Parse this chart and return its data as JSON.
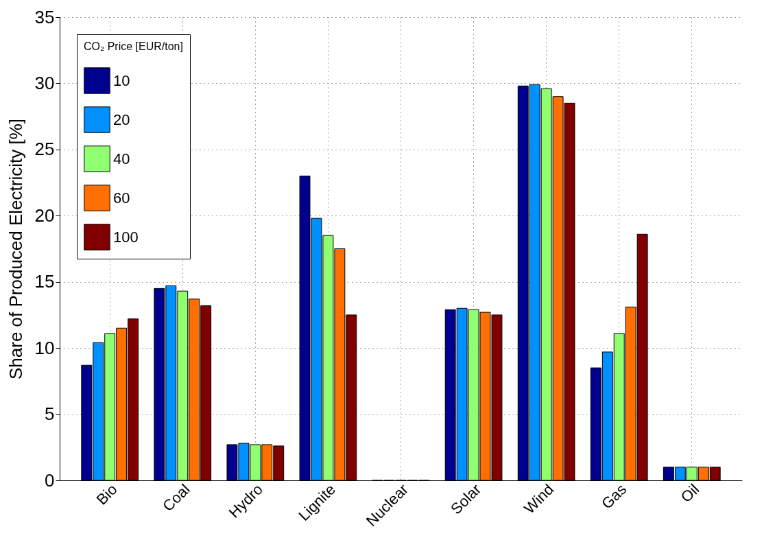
{
  "chart_data": {
    "type": "bar",
    "ylabel": "Share of Produced Electricity [%]",
    "legend_title": "CO₂ Price [EUR/ton]",
    "categories": [
      "Bio",
      "Coal",
      "Hydro",
      "Lignite",
      "Nuclear",
      "Solar",
      "Wind",
      "Gas",
      "Oil"
    ],
    "series": [
      {
        "name": "10",
        "color": "#00008f",
        "values": [
          8.7,
          14.5,
          2.7,
          23.0,
          0,
          12.9,
          29.8,
          8.5,
          1.0
        ]
      },
      {
        "name": "20",
        "color": "#0090ff",
        "values": [
          10.4,
          14.7,
          2.8,
          19.8,
          0,
          13.0,
          29.9,
          9.7,
          1.0
        ]
      },
      {
        "name": "40",
        "color": "#90ff70",
        "values": [
          11.1,
          14.3,
          2.7,
          18.5,
          0,
          12.9,
          29.6,
          11.1,
          1.0
        ]
      },
      {
        "name": "60",
        "color": "#ff7000",
        "values": [
          11.5,
          13.7,
          2.7,
          17.5,
          0,
          12.7,
          29.0,
          13.1,
          1.0
        ]
      },
      {
        "name": "100",
        "color": "#800000",
        "values": [
          12.2,
          13.2,
          2.6,
          12.5,
          0,
          12.5,
          28.5,
          18.6,
          1.0
        ]
      }
    ],
    "ylim": [
      0,
      35
    ],
    "yticks": [
      0,
      5,
      10,
      15,
      20,
      25,
      30,
      35
    ],
    "grid": true,
    "legend": "top left",
    "line_style": "dotted"
  }
}
